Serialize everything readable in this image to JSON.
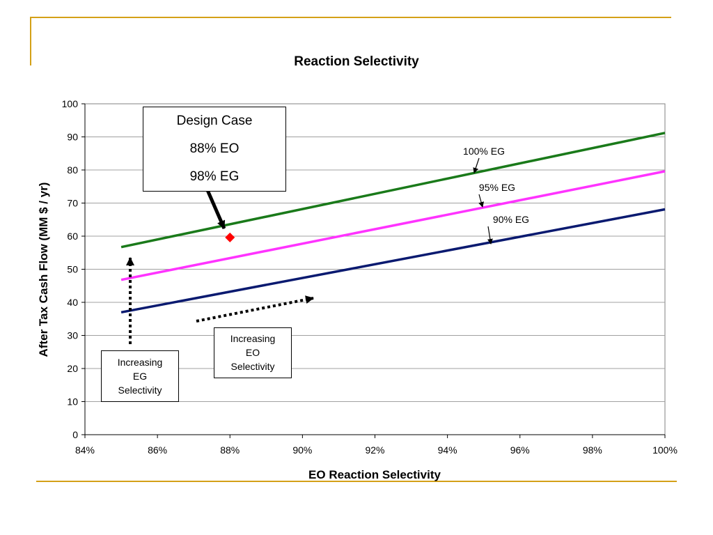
{
  "chart_data": {
    "type": "line",
    "title": "Reaction Selectivity",
    "xlabel": "EO Reaction Selectivity",
    "ylabel": "After Tax Cash Flow (MM $ / yr)",
    "xlim": [
      0.84,
      1.0
    ],
    "ylim": [
      0,
      100
    ],
    "x_ticks": [
      "84%",
      "86%",
      "88%",
      "90%",
      "92%",
      "94%",
      "96%",
      "98%",
      "100%"
    ],
    "y_ticks": [
      "0",
      "10",
      "20",
      "30",
      "40",
      "50",
      "60",
      "70",
      "80",
      "90",
      "100"
    ],
    "grid": true,
    "series": [
      {
        "name": "100% EG",
        "color": "#1a7a1a",
        "x": [
          0.85,
          1.0
        ],
        "y": [
          56.7,
          91.2
        ]
      },
      {
        "name": "95% EG",
        "color": "#ff33ff",
        "x": [
          0.85,
          1.0
        ],
        "y": [
          46.8,
          79.6
        ]
      },
      {
        "name": "90% EG",
        "color": "#0a1a70",
        "x": [
          0.85,
          1.0
        ],
        "y": [
          37.0,
          68.1
        ]
      }
    ],
    "point": {
      "x": 0.88,
      "y": 59.6,
      "color": "#ff0000"
    },
    "annotations": {
      "design_case": [
        "Design Case",
        "88% EO",
        "98% EG"
      ],
      "increasing_eg": [
        "Increasing",
        "EG",
        "Selectivity"
      ],
      "increasing_eo": [
        "Increasing",
        "EO",
        "Selectivity"
      ]
    }
  }
}
